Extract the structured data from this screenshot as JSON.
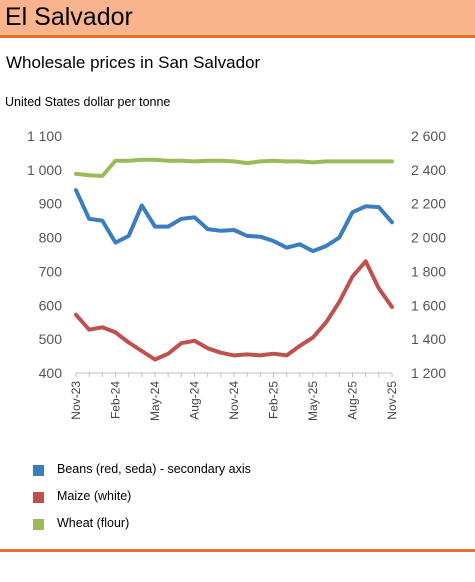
{
  "banner": {
    "title": "El Salvador"
  },
  "subtitle": "Wholesale prices in San Salvador",
  "unit_label": "United States dollar per tonne",
  "chart_data": {
    "type": "line",
    "x": [
      "Nov-23",
      "Dec-23",
      "Jan-24",
      "Feb-24",
      "Mar-24",
      "Apr-24",
      "May-24",
      "Jun-24",
      "Jul-24",
      "Aug-24",
      "Sep-24",
      "Oct-24",
      "Nov-24",
      "Dec-24",
      "Jan-25",
      "Feb-25",
      "Mar-25",
      "Apr-25",
      "May-25",
      "Jun-25",
      "Jul-25",
      "Aug-25",
      "Sep-25",
      "Oct-25",
      "Nov-25"
    ],
    "x_tick_labels": [
      "Nov-23",
      "Feb-24",
      "May-24",
      "Aug-24",
      "Nov-24",
      "Feb-25",
      "May-25",
      "Aug-25",
      "Nov-25"
    ],
    "y_left": {
      "ticks": [
        "1 100",
        "1 000",
        "900",
        "800",
        "700",
        "600",
        "500",
        "400"
      ],
      "range": [
        400,
        1100
      ]
    },
    "y_right": {
      "ticks": [
        "2 600",
        "2 400",
        "2 200",
        "2 000",
        "1 800",
        "1 600",
        "1 400",
        "1 200"
      ],
      "range": [
        1200,
        2600
      ]
    },
    "grid": false,
    "legend_position": "bottom",
    "series": [
      {
        "name": "Beans (red, seda) - secondary axis",
        "axis": "right",
        "color": "#3a7ebf",
        "values": [
          2280,
          2110,
          2100,
          1970,
          2010,
          2190,
          2065,
          2065,
          2110,
          2120,
          2050,
          2040,
          2045,
          2010,
          2005,
          1980,
          1940,
          1960,
          1920,
          1950,
          2000,
          2150,
          2185,
          2180,
          2090
        ]
      },
      {
        "name": "Maize (white)",
        "axis": "left",
        "color": "#c0504d",
        "values": [
          572,
          528,
          535,
          520,
          490,
          465,
          440,
          457,
          488,
          495,
          473,
          460,
          452,
          455,
          452,
          457,
          452,
          480,
          505,
          550,
          610,
          685,
          730,
          650,
          595
        ]
      },
      {
        "name": "Wheat (flour)",
        "axis": "left",
        "color": "#9bbb59",
        "values": [
          988,
          984,
          982,
          1027,
          1027,
          1030,
          1030,
          1027,
          1027,
          1025,
          1027,
          1027,
          1025,
          1020,
          1025,
          1027,
          1025,
          1025,
          1022,
          1025,
          1025,
          1025,
          1025,
          1025,
          1025
        ]
      }
    ]
  }
}
